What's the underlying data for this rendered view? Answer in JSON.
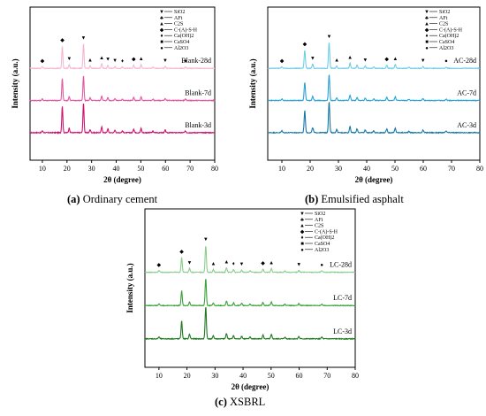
{
  "captions": [
    {
      "letter": "(a)",
      "text": "Ordinary cement"
    },
    {
      "letter": "(b)",
      "text": "Emulsified asphalt"
    },
    {
      "letter": "(c)",
      "text": "XSBRL"
    }
  ],
  "legend_items": [
    {
      "symbol": "▼",
      "label": "SiO2"
    },
    {
      "symbol": "♣",
      "label": "AFt"
    },
    {
      "symbol": "▲",
      "label": "C2S"
    },
    {
      "symbol": "◆",
      "label": "C-(A)-S-H"
    },
    {
      "symbol": "♦",
      "label": "Ca(OH)2"
    },
    {
      "symbol": "■",
      "label": "CaSO4"
    },
    {
      "symbol": "●",
      "label": "Al2O3"
    }
  ],
  "chart_data": [
    {
      "type": "line",
      "panel": "a",
      "xlabel": "2θ (degree)",
      "ylabel": "Intensity (a.u.)",
      "xlim": [
        5,
        80
      ],
      "xticks": [
        10,
        20,
        30,
        40,
        50,
        60,
        70,
        80
      ],
      "colors": [
        "#d0126e",
        "#e0589e",
        "#f5b8d2"
      ],
      "series": [
        {
          "name": "Blank-3d",
          "peaks": [
            [
              10,
              0.06
            ],
            [
              18.1,
              0.85
            ],
            [
              20.9,
              0.15
            ],
            [
              26.7,
              0.95
            ],
            [
              29.4,
              0.1
            ],
            [
              34.1,
              0.18
            ],
            [
              36.6,
              0.12
            ],
            [
              39.5,
              0.08
            ],
            [
              42.5,
              0.06
            ],
            [
              47.1,
              0.12
            ],
            [
              50.1,
              0.14
            ],
            [
              54.9,
              0.05
            ],
            [
              59.9,
              0.08
            ],
            [
              68.1,
              0.05
            ]
          ]
        },
        {
          "name": "Blank-7d",
          "peaks": [
            [
              10,
              0.06
            ],
            [
              18.1,
              0.85
            ],
            [
              20.9,
              0.15
            ],
            [
              26.7,
              0.95
            ],
            [
              29.4,
              0.1
            ],
            [
              34.1,
              0.18
            ],
            [
              36.6,
              0.12
            ],
            [
              39.5,
              0.08
            ],
            [
              42.5,
              0.06
            ],
            [
              47.1,
              0.12
            ],
            [
              50.1,
              0.14
            ],
            [
              54.9,
              0.05
            ],
            [
              59.9,
              0.08
            ],
            [
              68.1,
              0.05
            ]
          ]
        },
        {
          "name": "Blank-28d",
          "peaks": [
            [
              10,
              0.06
            ],
            [
              18.1,
              0.85
            ],
            [
              20.9,
              0.15
            ],
            [
              26.7,
              0.95
            ],
            [
              29.4,
              0.1
            ],
            [
              34.1,
              0.18
            ],
            [
              36.6,
              0.12
            ],
            [
              39.5,
              0.08
            ],
            [
              42.5,
              0.06
            ],
            [
              47.1,
              0.12
            ],
            [
              50.1,
              0.14
            ],
            [
              54.9,
              0.05
            ],
            [
              59.9,
              0.08
            ],
            [
              68.1,
              0.05
            ]
          ]
        }
      ],
      "markers": [
        {
          "x": 10,
          "symbol": "◆"
        },
        {
          "x": 18.1,
          "symbol": "◆"
        },
        {
          "x": 20.9,
          "symbol": "▼"
        },
        {
          "x": 26.7,
          "symbol": "▼"
        },
        {
          "x": 29.4,
          "symbol": "▲"
        },
        {
          "x": 34.1,
          "symbol": "▲"
        },
        {
          "x": 36.6,
          "symbol": "▼"
        },
        {
          "x": 39.5,
          "symbol": "▼"
        },
        {
          "x": 42.5,
          "symbol": "♦"
        },
        {
          "x": 47.1,
          "symbol": "◆"
        },
        {
          "x": 50.1,
          "symbol": "▲"
        },
        {
          "x": 59.9,
          "symbol": "▼"
        },
        {
          "x": 68.1,
          "symbol": "●"
        }
      ]
    },
    {
      "type": "line",
      "panel": "b",
      "xlabel": "2θ (degree)",
      "ylabel": "Intensity (a.u.)",
      "xlim": [
        5,
        80
      ],
      "xticks": [
        10,
        20,
        30,
        40,
        50,
        60,
        70,
        80
      ],
      "colors": [
        "#1778a8",
        "#2aa2d2",
        "#6fcde8"
      ],
      "series": [
        {
          "name": "AC-3d",
          "peaks": [
            [
              10,
              0.06
            ],
            [
              18.1,
              0.7
            ],
            [
              20.9,
              0.16
            ],
            [
              26.7,
              1.0
            ],
            [
              29.4,
              0.1
            ],
            [
              34.1,
              0.2
            ],
            [
              36.6,
              0.12
            ],
            [
              39.5,
              0.09
            ],
            [
              42.5,
              0.06
            ],
            [
              47.1,
              0.12
            ],
            [
              50.1,
              0.14
            ],
            [
              54.9,
              0.05
            ],
            [
              59.9,
              0.08
            ],
            [
              68.1,
              0.05
            ]
          ]
        },
        {
          "name": "AC-7d",
          "peaks": [
            [
              10,
              0.06
            ],
            [
              18.1,
              0.7
            ],
            [
              20.9,
              0.16
            ],
            [
              26.7,
              1.0
            ],
            [
              29.4,
              0.1
            ],
            [
              34.1,
              0.2
            ],
            [
              36.6,
              0.12
            ],
            [
              39.5,
              0.09
            ],
            [
              42.5,
              0.06
            ],
            [
              47.1,
              0.12
            ],
            [
              50.1,
              0.14
            ],
            [
              54.9,
              0.05
            ],
            [
              59.9,
              0.08
            ],
            [
              68.1,
              0.05
            ]
          ]
        },
        {
          "name": "AC-28d",
          "peaks": [
            [
              10,
              0.06
            ],
            [
              18.1,
              0.7
            ],
            [
              20.9,
              0.16
            ],
            [
              26.7,
              1.0
            ],
            [
              29.4,
              0.1
            ],
            [
              34.1,
              0.2
            ],
            [
              36.6,
              0.12
            ],
            [
              39.5,
              0.09
            ],
            [
              42.5,
              0.06
            ],
            [
              47.1,
              0.12
            ],
            [
              50.1,
              0.14
            ],
            [
              54.9,
              0.05
            ],
            [
              59.9,
              0.08
            ],
            [
              68.1,
              0.05
            ]
          ]
        }
      ],
      "markers": [
        {
          "x": 10,
          "symbol": "◆"
        },
        {
          "x": 18.1,
          "symbol": "◆"
        },
        {
          "x": 20.9,
          "symbol": "▼"
        },
        {
          "x": 26.7,
          "symbol": "▼"
        },
        {
          "x": 29.4,
          "symbol": "▲"
        },
        {
          "x": 34.1,
          "symbol": "▲"
        },
        {
          "x": 39.5,
          "symbol": "▼"
        },
        {
          "x": 47.1,
          "symbol": "◆"
        },
        {
          "x": 50.1,
          "symbol": "▲"
        },
        {
          "x": 59.9,
          "symbol": "▼"
        },
        {
          "x": 68.1,
          "symbol": "●"
        }
      ]
    },
    {
      "type": "line",
      "panel": "c",
      "xlabel": "2θ (degree)",
      "ylabel": "Intensity (a.u.)",
      "xlim": [
        5,
        80
      ],
      "xticks": [
        10,
        20,
        30,
        40,
        50,
        60,
        70,
        80
      ],
      "colors": [
        "#1f7a1f",
        "#3aa33a",
        "#8ccd8c"
      ],
      "series": [
        {
          "name": "LC-3d",
          "peaks": [
            [
              10,
              0.06
            ],
            [
              18.1,
              0.55
            ],
            [
              20.9,
              0.14
            ],
            [
              26.7,
              1.0
            ],
            [
              29.4,
              0.1
            ],
            [
              34.1,
              0.17
            ],
            [
              36.6,
              0.1
            ],
            [
              39.5,
              0.08
            ],
            [
              42.5,
              0.06
            ],
            [
              47.1,
              0.12
            ],
            [
              50.1,
              0.13
            ],
            [
              54.9,
              0.05
            ],
            [
              59.9,
              0.07
            ],
            [
              68.1,
              0.05
            ]
          ]
        },
        {
          "name": "LC-7d",
          "peaks": [
            [
              10,
              0.06
            ],
            [
              18.1,
              0.55
            ],
            [
              20.9,
              0.14
            ],
            [
              26.7,
              1.0
            ],
            [
              29.4,
              0.1
            ],
            [
              34.1,
              0.17
            ],
            [
              36.6,
              0.1
            ],
            [
              39.5,
              0.08
            ],
            [
              42.5,
              0.06
            ],
            [
              47.1,
              0.12
            ],
            [
              50.1,
              0.13
            ],
            [
              54.9,
              0.05
            ],
            [
              59.9,
              0.07
            ],
            [
              68.1,
              0.05
            ]
          ]
        },
        {
          "name": "LC-28d",
          "peaks": [
            [
              10,
              0.06
            ],
            [
              18.1,
              0.55
            ],
            [
              20.9,
              0.14
            ],
            [
              26.7,
              1.0
            ],
            [
              29.4,
              0.1
            ],
            [
              34.1,
              0.17
            ],
            [
              36.6,
              0.1
            ],
            [
              39.5,
              0.08
            ],
            [
              42.5,
              0.06
            ],
            [
              47.1,
              0.12
            ],
            [
              50.1,
              0.13
            ],
            [
              54.9,
              0.05
            ],
            [
              59.9,
              0.07
            ],
            [
              68.1,
              0.05
            ]
          ]
        }
      ],
      "markers": [
        {
          "x": 10,
          "symbol": "◆"
        },
        {
          "x": 18.1,
          "symbol": "◆"
        },
        {
          "x": 20.9,
          "symbol": "▼"
        },
        {
          "x": 26.7,
          "symbol": "▼"
        },
        {
          "x": 29.4,
          "symbol": "▲"
        },
        {
          "x": 34.1,
          "symbol": "▲"
        },
        {
          "x": 36.6,
          "symbol": "♦"
        },
        {
          "x": 39.5,
          "symbol": "▼"
        },
        {
          "x": 47.1,
          "symbol": "◆"
        },
        {
          "x": 50.1,
          "symbol": "▲"
        },
        {
          "x": 59.9,
          "symbol": "▼"
        },
        {
          "x": 68.1,
          "symbol": "●"
        }
      ]
    }
  ]
}
